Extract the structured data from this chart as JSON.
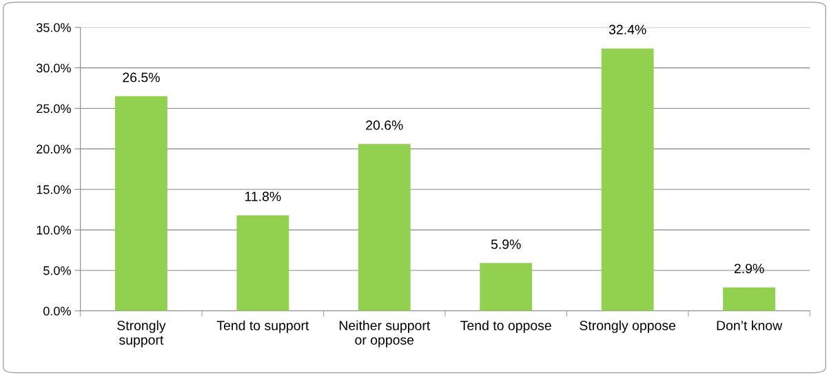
{
  "chart_data": {
    "type": "bar",
    "categories": [
      "Strongly support",
      "Tend to support",
      "Neither support or oppose",
      "Tend to oppose",
      "Strongly oppose",
      "Don’t know"
    ],
    "values": [
      26.5,
      11.8,
      20.6,
      5.9,
      32.4,
      2.9
    ],
    "value_labels": [
      "26.5%",
      "11.8%",
      "20.6%",
      "5.9%",
      "32.4%",
      "2.9%"
    ],
    "color": "#92d050",
    "ylim": [
      0,
      35
    ],
    "yticks": [
      {
        "value": 0,
        "label": "0.0%"
      },
      {
        "value": 5,
        "label": "5.0%"
      },
      {
        "value": 10,
        "label": "10.0%"
      },
      {
        "value": 15,
        "label": "15.0%"
      },
      {
        "value": 20,
        "label": "20.0%"
      },
      {
        "value": 25,
        "label": "25.0%"
      },
      {
        "value": 30,
        "label": "30.0%"
      },
      {
        "value": 35,
        "label": "35.0%"
      }
    ],
    "grid": "y",
    "legend": false
  }
}
